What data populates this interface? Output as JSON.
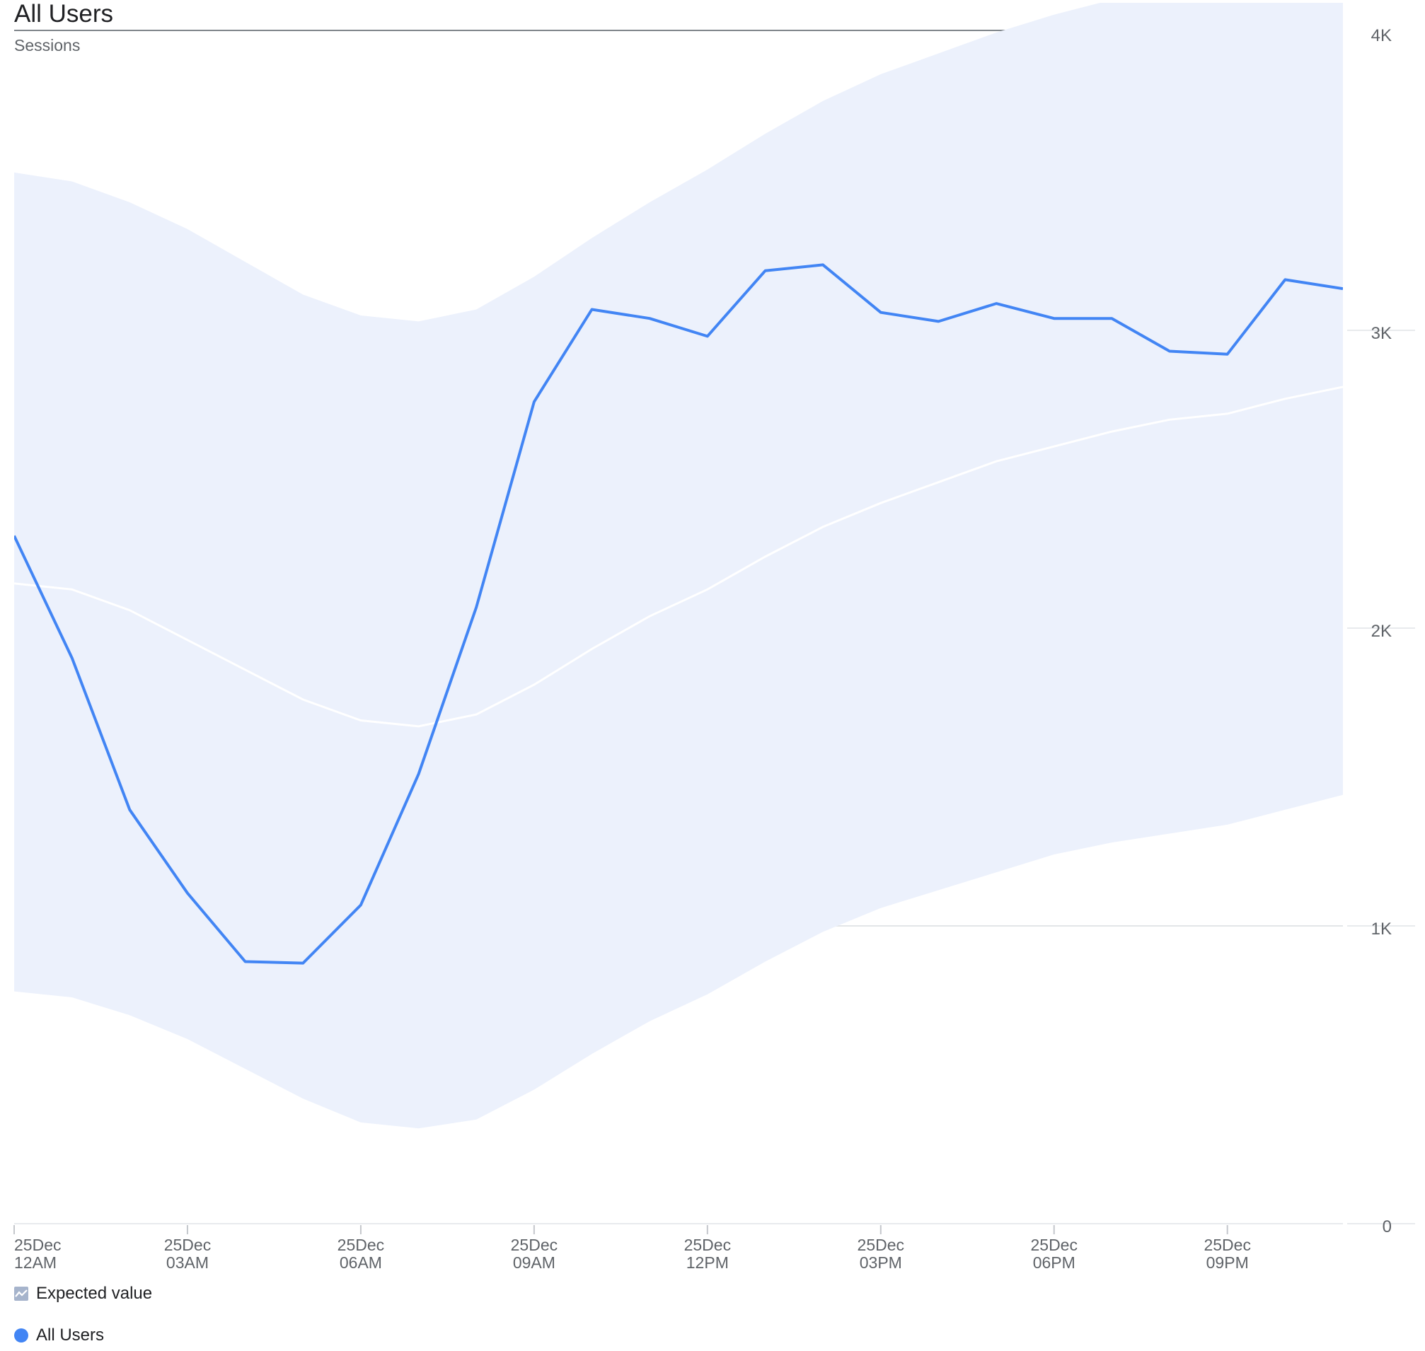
{
  "header": {
    "title": "All Users",
    "subtitle": "Sessions"
  },
  "legend": {
    "expected_label": "Expected value",
    "series_label": "All Users",
    "expected_icon": "trend-area-icon",
    "series_color": "#4285f4",
    "band_color": "#ecf1fc",
    "expected_line_color": "#ffffff"
  },
  "chart_data": {
    "type": "line",
    "title": "All Users",
    "subtitle": "Sessions",
    "x_unit": "hours",
    "x": [
      0,
      1,
      2,
      3,
      4,
      5,
      6,
      7,
      8,
      9,
      10,
      11,
      12,
      13,
      14,
      15,
      16,
      17,
      18,
      19,
      20,
      21,
      22,
      23
    ],
    "x_ticks": [
      {
        "x": 0,
        "label": [
          "25Dec",
          "12AM"
        ]
      },
      {
        "x": 3,
        "label": [
          "25Dec",
          "03AM"
        ]
      },
      {
        "x": 6,
        "label": [
          "25Dec",
          "06AM"
        ]
      },
      {
        "x": 9,
        "label": [
          "25Dec",
          "09AM"
        ]
      },
      {
        "x": 12,
        "label": [
          "25Dec",
          "12PM"
        ]
      },
      {
        "x": 15,
        "label": [
          "25Dec",
          "03PM"
        ]
      },
      {
        "x": 18,
        "label": [
          "25Dec",
          "06PM"
        ]
      },
      {
        "x": 21,
        "label": [
          "25Dec",
          "09PM"
        ]
      }
    ],
    "y_ticks": [
      {
        "value": 0,
        "label": "0"
      },
      {
        "value": 1000,
        "label": "1K"
      },
      {
        "value": 2000,
        "label": "2K"
      },
      {
        "value": 3000,
        "label": "3K"
      },
      {
        "value": 4000,
        "label": "4K"
      }
    ],
    "ylim": [
      0,
      4100
    ],
    "grid": true,
    "legend_position": "bottom-left",
    "series": [
      {
        "name": "All Users",
        "color": "#4285f4",
        "values": [
          2310,
          1900,
          1390,
          1110,
          880,
          875,
          1070,
          1510,
          2070,
          2760,
          3070,
          3040,
          2980,
          3200,
          3220,
          3060,
          3030,
          3090,
          3040,
          3040,
          2930,
          2920,
          3170,
          3140
        ]
      }
    ],
    "expected": {
      "label": "Expected value",
      "center": [
        2150,
        2130,
        2060,
        1960,
        1860,
        1760,
        1690,
        1670,
        1710,
        1810,
        1930,
        2040,
        2130,
        2240,
        2340,
        2420,
        2490,
        2560,
        2610,
        2660,
        2700,
        2720,
        2770,
        2810
      ],
      "upper": [
        3530,
        3500,
        3430,
        3340,
        3230,
        3120,
        3050,
        3030,
        3070,
        3180,
        3310,
        3430,
        3540,
        3660,
        3770,
        3860,
        3930,
        4000,
        4060,
        4110,
        4160,
        4190,
        4240,
        4280
      ],
      "lower": [
        780,
        760,
        700,
        620,
        520,
        420,
        340,
        320,
        350,
        450,
        570,
        680,
        770,
        880,
        980,
        1060,
        1120,
        1180,
        1240,
        1280,
        1310,
        1340,
        1390,
        1440
      ]
    }
  }
}
